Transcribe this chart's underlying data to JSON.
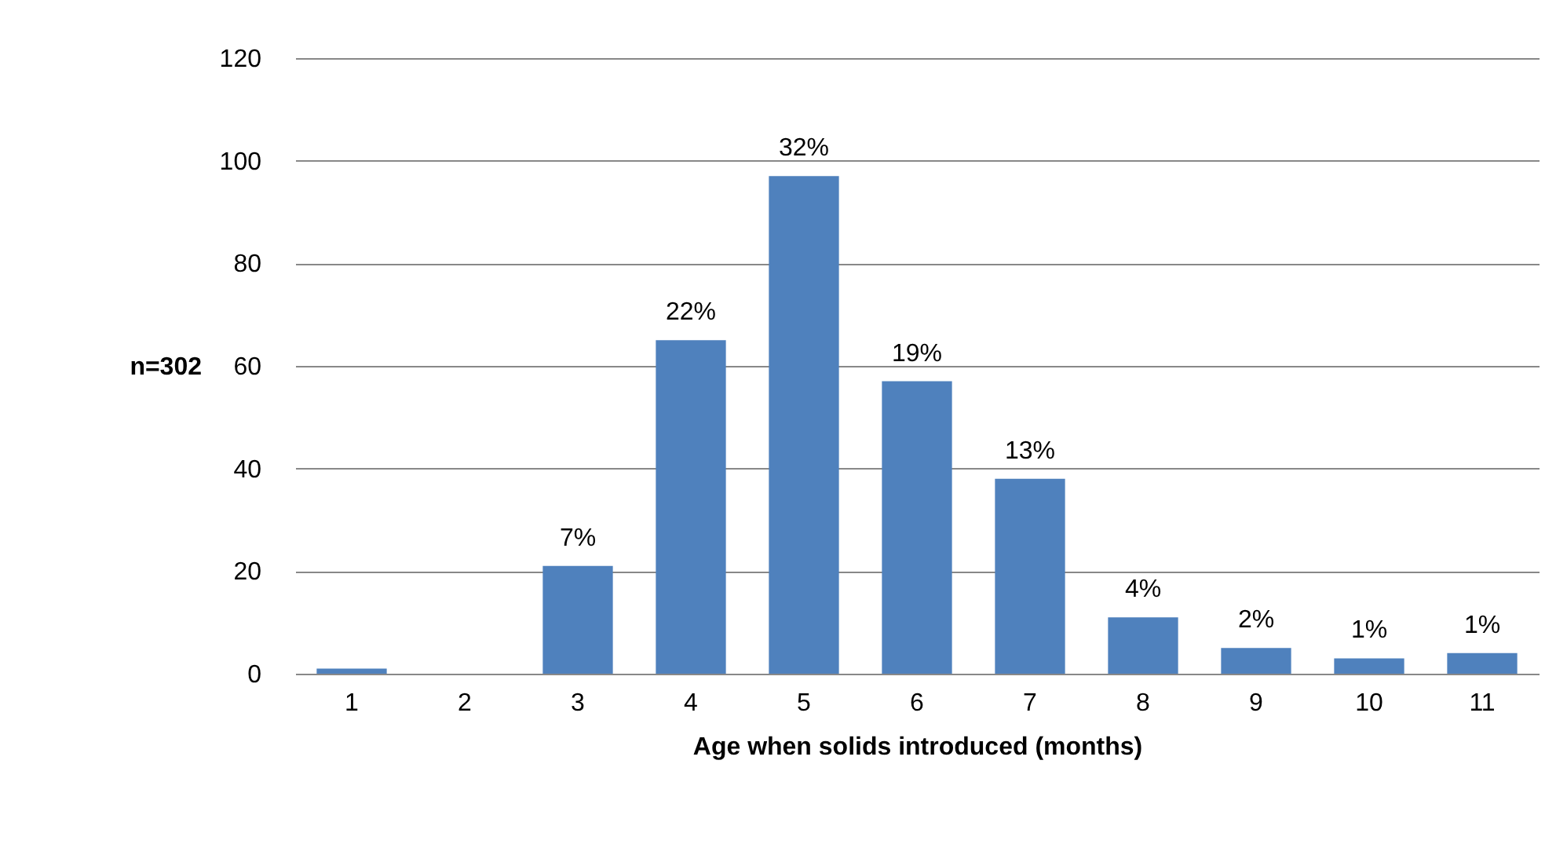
{
  "chart_data": {
    "type": "bar",
    "xlabel": "Age when solids introduced (months)",
    "ylabel": "n=302",
    "categories": [
      "1",
      "2",
      "3",
      "4",
      "5",
      "6",
      "7",
      "8",
      "9",
      "10",
      "11"
    ],
    "values": [
      1,
      0,
      21,
      65,
      97,
      57,
      38,
      11,
      5,
      3,
      4
    ],
    "annotations": [
      {
        "text": "7%",
        "x": "3",
        "y": 21
      },
      {
        "text": "22%",
        "x": "4",
        "y": 65
      },
      {
        "text": "32%",
        "x": "5",
        "y": 97
      },
      {
        "text": "19%",
        "x": "6",
        "y": 57
      },
      {
        "text": "13%",
        "x": "7",
        "y": 38
      },
      {
        "text": "4%",
        "x": "8",
        "y": 11
      },
      {
        "text": "2%",
        "x": "9",
        "y": 5
      },
      {
        "text": "1%",
        "x": "10",
        "y": 3
      },
      {
        "text": "1%",
        "x": "11",
        "y": 4
      }
    ],
    "color": "#4f81bd",
    "ylim": [
      0,
      120
    ],
    "yticks": [
      0,
      20,
      40,
      60,
      80,
      100,
      120
    ],
    "grid": "y"
  }
}
